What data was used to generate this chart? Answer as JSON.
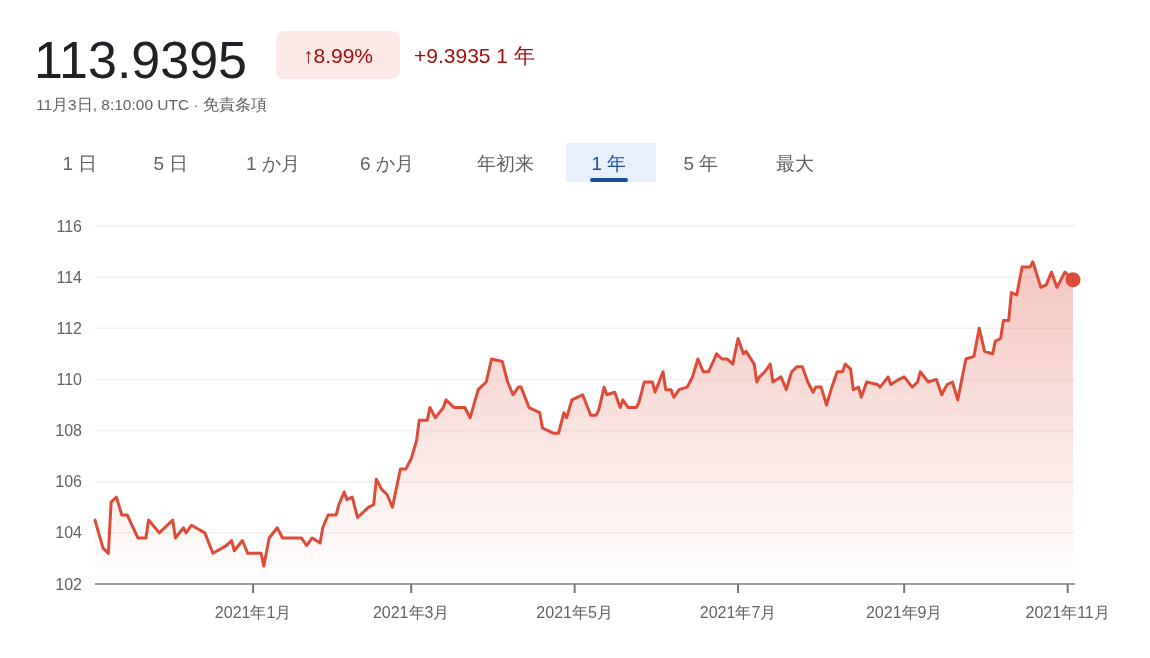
{
  "chart_data": {
    "type": "area",
    "title": "113.9395",
    "subtitle": "11月3日, 8:10:00 UTC · 免責条項",
    "annotations": [
      "↑8.99%",
      "+9.3935 1 年",
      "1 日",
      "5 日",
      "1 か月",
      "6 か月",
      "年初来",
      "1 年",
      "5 年",
      "最大"
    ],
    "xlim": [
      "2020-11-03",
      "2021-11-03"
    ],
    "xticks": [
      {
        "value": "2021-01-01",
        "label": "2021年1月"
      },
      {
        "value": "2021-03-01",
        "label": "2021年3月"
      },
      {
        "value": "2021-05-01",
        "label": "2021年5月"
      },
      {
        "value": "2021-07-01",
        "label": "2021年7月"
      },
      {
        "value": "2021-09-01",
        "label": "2021年9月"
      },
      {
        "value": "2021-11-01",
        "label": "2021年11月"
      }
    ],
    "ylim": [
      102,
      116
    ],
    "yticks": [
      102,
      104,
      106,
      108,
      110,
      112,
      114,
      116
    ],
    "grid": "y",
    "series": [
      {
        "color": "#dd4b39",
        "x": [
          "2020-11-03",
          "2020-11-06",
          "2020-11-08",
          "2020-11-09",
          "2020-11-11",
          "2020-11-13",
          "2020-11-15",
          "2020-11-19",
          "2020-11-22",
          "2020-11-23",
          "2020-11-27",
          "2020-12-02",
          "2020-12-03",
          "2020-12-06",
          "2020-12-07",
          "2020-12-09",
          "2020-12-14",
          "2020-12-17",
          "2020-12-22",
          "2020-12-24",
          "2020-12-25",
          "2020-12-28",
          "2020-12-30",
          "2021-01-04",
          "2021-01-05",
          "2021-01-07",
          "2021-01-10",
          "2021-01-12",
          "2021-01-19",
          "2021-01-21",
          "2021-01-23",
          "2021-01-26",
          "2021-01-27",
          "2021-01-29",
          "2021-02-01",
          "2021-02-02",
          "2021-02-04",
          "2021-02-05",
          "2021-02-07",
          "2021-02-09",
          "2021-02-13",
          "2021-02-15",
          "2021-02-16",
          "2021-02-18",
          "2021-02-20",
          "2021-02-22",
          "2021-02-25",
          "2021-02-27",
          "2021-03-01",
          "2021-03-03",
          "2021-03-04",
          "2021-03-07",
          "2021-03-08",
          "2021-03-10",
          "2021-03-13",
          "2021-03-14",
          "2021-03-17",
          "2021-03-21",
          "2021-03-23",
          "2021-03-26",
          "2021-03-29",
          "2021-03-31",
          "2021-04-04",
          "2021-04-06",
          "2021-04-08",
          "2021-04-10",
          "2021-04-11",
          "2021-04-14",
          "2021-04-16",
          "2021-04-18",
          "2021-04-19",
          "2021-04-23",
          "2021-04-25",
          "2021-04-27",
          "2021-04-28",
          "2021-04-30",
          "2021-05-02",
          "2021-05-04",
          "2021-05-07",
          "2021-05-09",
          "2021-05-10",
          "2021-05-12",
          "2021-05-13",
          "2021-05-16",
          "2021-05-18",
          "2021-05-19",
          "2021-05-21",
          "2021-05-24",
          "2021-05-25",
          "2021-05-27",
          "2021-05-30",
          "2021-05-31",
          "2021-06-03",
          "2021-06-04",
          "2021-06-06",
          "2021-06-07",
          "2021-06-09",
          "2021-06-12",
          "2021-06-14",
          "2021-06-16",
          "2021-06-18",
          "2021-06-20",
          "2021-06-23",
          "2021-06-25",
          "2021-06-27",
          "2021-06-29",
          "2021-07-01",
          "2021-07-03",
          "2021-07-04",
          "2021-07-07",
          "2021-07-08",
          "2021-07-09",
          "2021-07-11",
          "2021-07-13",
          "2021-07-14",
          "2021-07-17",
          "2021-07-19",
          "2021-07-21",
          "2021-07-23",
          "2021-07-25",
          "2021-07-27",
          "2021-07-29",
          "2021-07-30",
          "2021-08-01",
          "2021-08-03",
          "2021-08-05",
          "2021-08-07",
          "2021-08-09",
          "2021-08-10",
          "2021-08-12",
          "2021-08-13",
          "2021-08-15",
          "2021-08-16",
          "2021-08-18",
          "2021-08-22",
          "2021-08-23",
          "2021-08-26",
          "2021-08-27",
          "2021-08-30",
          "2021-09-01",
          "2021-09-04",
          "2021-09-06",
          "2021-09-07",
          "2021-09-10",
          "2021-09-13",
          "2021-09-15",
          "2021-09-17",
          "2021-09-19",
          "2021-09-21",
          "2021-09-24",
          "2021-09-27",
          "2021-09-29",
          "2021-10-01",
          "2021-10-04",
          "2021-10-05",
          "2021-10-07",
          "2021-10-08",
          "2021-10-10",
          "2021-10-11",
          "2021-10-13",
          "2021-10-15",
          "2021-10-18",
          "2021-10-19",
          "2021-10-22",
          "2021-10-24",
          "2021-10-26",
          "2021-10-28",
          "2021-10-30",
          "2021-10-31",
          "2021-11-03"
        ],
        "values": [
          104.5,
          103.4,
          103.2,
          105.2,
          105.4,
          104.7,
          104.7,
          103.8,
          103.8,
          104.5,
          104.0,
          104.5,
          103.8,
          104.2,
          104.0,
          104.3,
          104.0,
          103.2,
          103.5,
          103.7,
          103.3,
          103.7,
          103.2,
          103.2,
          102.7,
          103.8,
          104.2,
          103.8,
          103.8,
          103.5,
          103.8,
          103.6,
          104.2,
          104.7,
          104.7,
          105.1,
          105.6,
          105.3,
          105.4,
          104.6,
          105.0,
          105.1,
          106.1,
          105.7,
          105.5,
          105.0,
          106.5,
          106.5,
          106.9,
          107.6,
          108.4,
          108.4,
          108.9,
          108.5,
          108.9,
          109.2,
          108.9,
          108.9,
          108.5,
          109.6,
          109.9,
          110.8,
          110.7,
          109.9,
          109.4,
          109.7,
          109.7,
          108.9,
          108.8,
          108.7,
          108.1,
          107.9,
          107.9,
          108.7,
          108.5,
          109.2,
          109.3,
          109.4,
          108.6,
          108.6,
          108.8,
          109.7,
          109.4,
          109.5,
          108.9,
          109.2,
          108.9,
          108.9,
          109.1,
          109.9,
          109.9,
          109.5,
          110.3,
          109.6,
          109.6,
          109.3,
          109.6,
          109.7,
          110.1,
          110.8,
          110.3,
          110.3,
          111.0,
          110.8,
          110.8,
          110.6,
          111.6,
          111.0,
          111.1,
          110.6,
          109.9,
          110.1,
          110.3,
          110.6,
          109.9,
          110.1,
          109.6,
          110.3,
          110.5,
          110.5,
          109.9,
          109.5,
          109.7,
          109.7,
          109.0,
          109.7,
          110.3,
          110.3,
          110.6,
          110.4,
          109.6,
          109.7,
          109.3,
          109.9,
          109.8,
          109.7,
          110.1,
          109.8,
          110.0,
          110.1,
          109.7,
          109.9,
          110.3,
          109.9,
          110.0,
          109.4,
          109.8,
          109.9,
          109.2,
          110.8,
          110.9,
          112.0,
          111.1,
          111.0,
          111.5,
          111.6,
          112.3,
          112.3,
          113.4,
          113.3,
          114.4,
          114.4,
          114.6,
          113.6,
          113.7,
          114.2,
          113.6,
          114.0,
          114.2,
          113.9
        ]
      },
      {
        "type": "scatter",
        "color": "#dd4b39",
        "marker": "circle",
        "x": [
          "2021-11-03"
        ],
        "values": [
          113.9
        ]
      }
    ]
  }
}
